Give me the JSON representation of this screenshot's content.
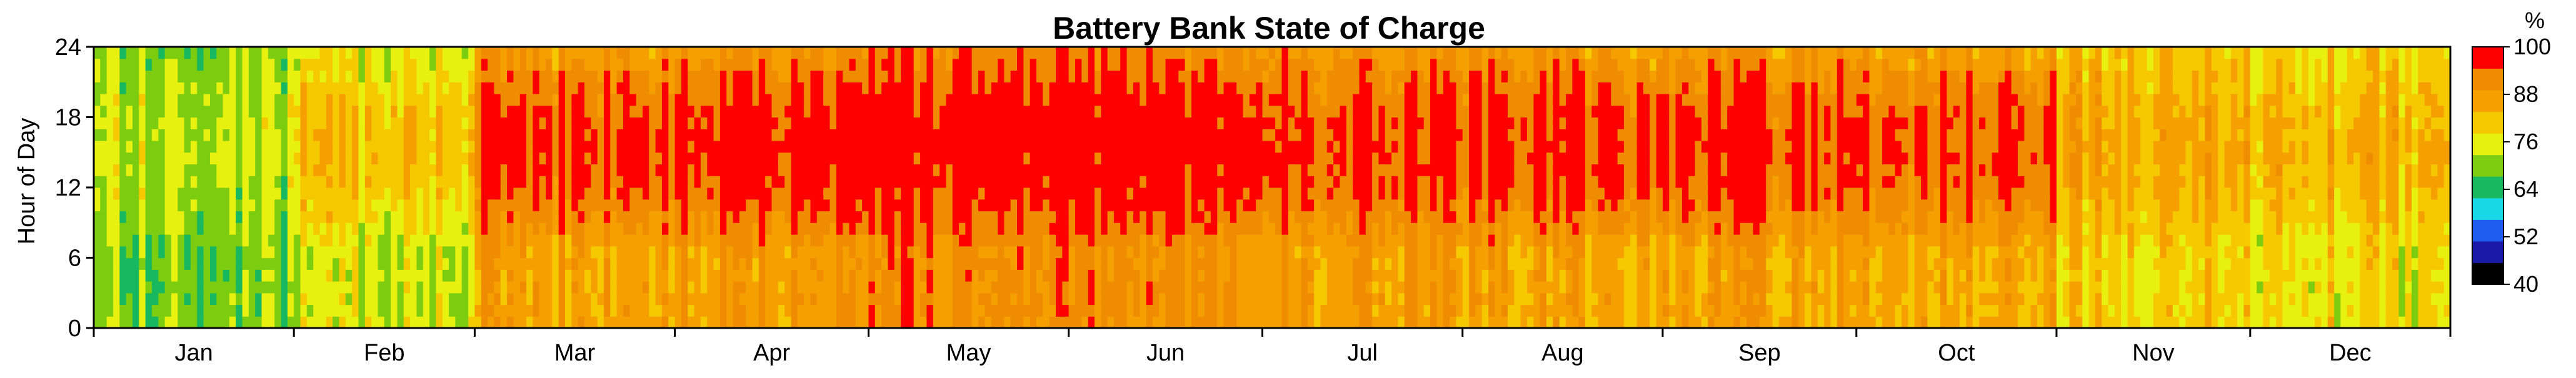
{
  "chart_data": {
    "type": "heatmap",
    "title": "Battery Bank State of Charge",
    "ylabel": "Hour of Day",
    "xlabel": "",
    "y_ticks": [
      0,
      6,
      12,
      18,
      24
    ],
    "ylim": [
      0,
      24
    ],
    "x_categories": [
      "Jan",
      "Feb",
      "Mar",
      "Apr",
      "May",
      "Jun",
      "Jul",
      "Aug",
      "Sep",
      "Oct",
      "Nov",
      "Dec"
    ],
    "days_in_month": [
      31,
      28,
      31,
      30,
      31,
      30,
      31,
      31,
      30,
      31,
      30,
      31
    ],
    "colorbar": {
      "unit": "%",
      "ticks": [
        100,
        88,
        76,
        64,
        52,
        40
      ],
      "range": [
        40,
        100
      ],
      "colors": [
        "#000000",
        "#1a1aa8",
        "#1f5cf0",
        "#18d8e8",
        "#18b860",
        "#7ccc10",
        "#e8f010",
        "#f5c800",
        "#f5a000",
        "#f08c00",
        "#ff0000"
      ]
    },
    "monthly_profile": {
      "Jan": {
        "night": 70,
        "day": 74
      },
      "Feb": {
        "night": 74,
        "day": 82
      },
      "Mar": {
        "night": 86,
        "day": 96
      },
      "Apr": {
        "night": 88,
        "day": 99
      },
      "May": {
        "night": 91,
        "day": 100
      },
      "Jun": {
        "night": 90,
        "day": 100
      },
      "Jul": {
        "night": 88,
        "day": 97
      },
      "Aug": {
        "night": 86,
        "day": 97
      },
      "Sep": {
        "night": 86,
        "day": 96
      },
      "Oct": {
        "night": 86,
        "day": 96
      },
      "Nov": {
        "night": 80,
        "day": 86
      },
      "Dec": {
        "night": 78,
        "day": 84
      }
    }
  }
}
